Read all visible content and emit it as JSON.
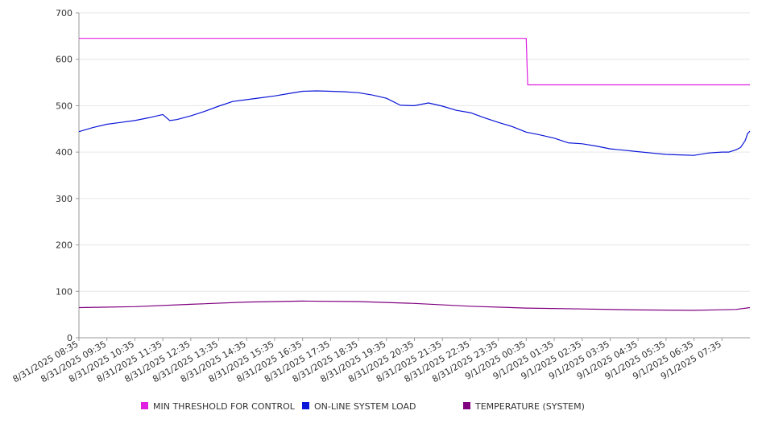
{
  "chart_data": {
    "type": "line",
    "title": "",
    "xlabel": "",
    "ylabel": "",
    "ylim": [
      0,
      700
    ],
    "yticks": [
      0,
      100,
      200,
      300,
      400,
      500,
      600,
      700
    ],
    "grid": true,
    "legend_position": "bottom",
    "categories": [
      "8/31/2025 08:35",
      "8/31/2025 09:35",
      "8/31/2025 10:35",
      "8/31/2025 11:35",
      "8/31/2025 12:35",
      "8/31/2025 13:35",
      "8/31/2025 14:35",
      "8/31/2025 15:35",
      "8/31/2025 16:35",
      "8/31/2025 17:35",
      "8/31/2025 18:35",
      "8/31/2025 19:35",
      "8/31/2025 20:35",
      "8/31/2025 21:35",
      "8/31/2025 22:35",
      "8/31/2025 23:35",
      "9/1/2025 00:35",
      "9/1/2025 01:35",
      "9/1/2025 02:35",
      "9/1/2025 03:35",
      "9/1/2025 04:35",
      "9/1/2025 05:35",
      "9/1/2025 06:35",
      "9/1/2025 07:35"
    ],
    "x_start": "8/31/2025 08:35",
    "x_end": "9/1/2025 08:35",
    "series": [
      {
        "name": "MIN THRESHOLD FOR CONTROL",
        "color": "#e020e0",
        "points": [
          [
            "8/31/2025 08:35",
            645
          ],
          [
            "9/1/2025 00:35",
            645
          ],
          [
            "9/1/2025 00:38",
            545
          ],
          [
            "9/1/2025 08:35",
            545
          ]
        ]
      },
      {
        "name": "ON-LINE SYSTEM LOAD",
        "color": "#0a16d8",
        "points": [
          [
            "8/31/2025 08:35",
            444
          ],
          [
            "8/31/2025 09:05",
            453
          ],
          [
            "8/31/2025 09:35",
            460
          ],
          [
            "8/31/2025 10:05",
            464
          ],
          [
            "8/31/2025 10:35",
            468
          ],
          [
            "8/31/2025 11:05",
            474
          ],
          [
            "8/31/2025 11:35",
            481
          ],
          [
            "8/31/2025 11:50",
            468
          ],
          [
            "8/31/2025 12:05",
            470
          ],
          [
            "8/31/2025 12:35",
            478
          ],
          [
            "8/31/2025 13:05",
            488
          ],
          [
            "8/31/2025 13:35",
            499
          ],
          [
            "8/31/2025 14:05",
            509
          ],
          [
            "8/31/2025 14:35",
            513
          ],
          [
            "8/31/2025 15:05",
            517
          ],
          [
            "8/31/2025 15:35",
            521
          ],
          [
            "8/31/2025 16:05",
            526
          ],
          [
            "8/31/2025 16:35",
            531
          ],
          [
            "8/31/2025 17:05",
            532
          ],
          [
            "8/31/2025 17:35",
            531
          ],
          [
            "8/31/2025 18:05",
            530
          ],
          [
            "8/31/2025 18:35",
            528
          ],
          [
            "8/31/2025 19:05",
            523
          ],
          [
            "8/31/2025 19:35",
            516
          ],
          [
            "8/31/2025 20:05",
            501
          ],
          [
            "8/31/2025 20:35",
            500
          ],
          [
            "8/31/2025 21:05",
            506
          ],
          [
            "8/31/2025 21:35",
            499
          ],
          [
            "8/31/2025 22:05",
            490
          ],
          [
            "8/31/2025 22:35",
            485
          ],
          [
            "8/31/2025 23:05",
            474
          ],
          [
            "8/31/2025 23:35",
            464
          ],
          [
            "9/1/2025 00:05",
            455
          ],
          [
            "9/1/2025 00:35",
            443
          ],
          [
            "9/1/2025 01:05",
            437
          ],
          [
            "9/1/2025 01:35",
            430
          ],
          [
            "9/1/2025 02:05",
            420
          ],
          [
            "9/1/2025 02:35",
            418
          ],
          [
            "9/1/2025 03:05",
            413
          ],
          [
            "9/1/2025 03:35",
            407
          ],
          [
            "9/1/2025 04:05",
            404
          ],
          [
            "9/1/2025 04:35",
            401
          ],
          [
            "9/1/2025 05:05",
            398
          ],
          [
            "9/1/2025 05:35",
            395
          ],
          [
            "9/1/2025 06:05",
            394
          ],
          [
            "9/1/2025 06:35",
            393
          ],
          [
            "9/1/2025 07:05",
            398
          ],
          [
            "9/1/2025 07:35",
            400
          ],
          [
            "9/1/2025 07:50",
            400
          ],
          [
            "9/1/2025 08:05",
            405
          ],
          [
            "9/1/2025 08:15",
            410
          ],
          [
            "9/1/2025 08:25",
            425
          ],
          [
            "9/1/2025 08:30",
            440
          ],
          [
            "9/1/2025 08:35",
            445
          ]
        ]
      },
      {
        "name": "TEMPERATURE (SYSTEM)",
        "color": "#800080",
        "points": [
          [
            "8/31/2025 08:35",
            65
          ],
          [
            "8/31/2025 10:35",
            67
          ],
          [
            "8/31/2025 12:35",
            72
          ],
          [
            "8/31/2025 14:35",
            77
          ],
          [
            "8/31/2025 16:35",
            79
          ],
          [
            "8/31/2025 18:35",
            78
          ],
          [
            "8/31/2025 20:35",
            74
          ],
          [
            "8/31/2025 22:35",
            68
          ],
          [
            "9/1/2025 00:35",
            64
          ],
          [
            "9/1/2025 02:35",
            62
          ],
          [
            "9/1/2025 04:35",
            60
          ],
          [
            "9/1/2025 06:35",
            59
          ],
          [
            "9/1/2025 08:05",
            61
          ],
          [
            "9/1/2025 08:35",
            65
          ]
        ]
      }
    ]
  }
}
